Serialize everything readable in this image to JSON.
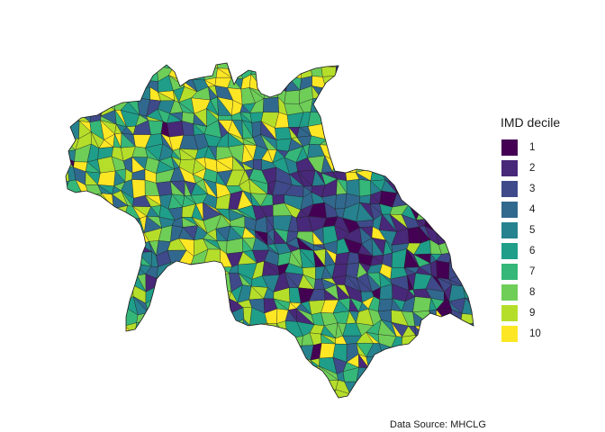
{
  "legend": {
    "title": "IMD decile",
    "items": [
      {
        "label": "1",
        "color": "#440154"
      },
      {
        "label": "2",
        "color": "#482878"
      },
      {
        "label": "3",
        "color": "#3e4a89"
      },
      {
        "label": "4",
        "color": "#31688e"
      },
      {
        "label": "5",
        "color": "#26828e"
      },
      {
        "label": "6",
        "color": "#1f9e89"
      },
      {
        "label": "7",
        "color": "#35b779"
      },
      {
        "label": "8",
        "color": "#6ece58"
      },
      {
        "label": "9",
        "color": "#b5de2b"
      },
      {
        "label": "10",
        "color": "#fde725"
      }
    ]
  },
  "caption": "Data Source: MHCLG",
  "map": {
    "border_color": "#1a1a1a"
  }
}
